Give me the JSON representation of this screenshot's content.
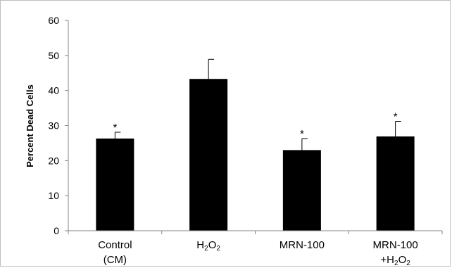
{
  "chart_data": {
    "type": "bar",
    "title": "",
    "xlabel": "",
    "ylabel": "Percent Dead Cells",
    "ylim": [
      0,
      60
    ],
    "yticks": [
      0,
      10,
      20,
      30,
      40,
      50,
      60
    ],
    "grid": false,
    "categories": [
      {
        "lines": [
          {
            "segments": [
              {
                "t": "Control"
              }
            ]
          },
          {
            "segments": [
              {
                "t": "(CM)"
              }
            ]
          }
        ]
      },
      {
        "lines": [
          {
            "segments": [
              {
                "t": "H"
              },
              {
                "t": "2",
                "sub": true
              },
              {
                "t": "O"
              },
              {
                "t": "2",
                "sub": true
              }
            ]
          }
        ]
      },
      {
        "lines": [
          {
            "segments": [
              {
                "t": "MRN-100"
              }
            ]
          }
        ]
      },
      {
        "lines": [
          {
            "segments": [
              {
                "t": "MRN-100"
              }
            ]
          },
          {
            "segments": [
              {
                "t": "+H"
              },
              {
                "t": "2",
                "sub": true
              },
              {
                "t": "O"
              },
              {
                "t": "2",
                "sub": true
              }
            ]
          }
        ]
      }
    ],
    "values": [
      26.3,
      43.3,
      23.0,
      26.9
    ],
    "errors": [
      1.8,
      5.6,
      3.3,
      4.3
    ],
    "significance": [
      "*",
      "",
      "*",
      "*"
    ],
    "colors": {
      "bar": "#000000",
      "axis": "#868686",
      "error": "#000000"
    }
  }
}
